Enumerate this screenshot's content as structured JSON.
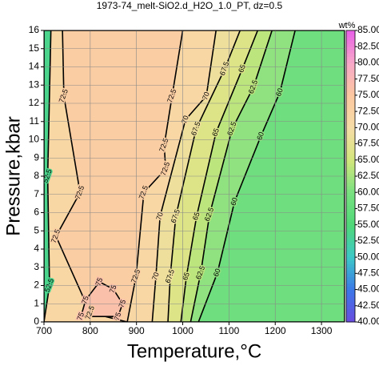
{
  "chart_data": {
    "type": "contour",
    "title": "1973-74_melt-SiO2.d_H2O_1.0_PT, dz=0.5",
    "x_label": "Temperature,°C",
    "y_label": "Pressure,kbar",
    "xlim": [
      700,
      1350
    ],
    "xticks": [
      700,
      800,
      900,
      1000,
      1100,
      1200,
      1300
    ],
    "ylim": [
      0,
      16
    ],
    "yticks": [
      0,
      1,
      2,
      3,
      4,
      5,
      6,
      7,
      8,
      9,
      10,
      11,
      12,
      13,
      14,
      15,
      16
    ],
    "grid": true,
    "colorbar_label": "wt%",
    "clim": [
      40,
      85
    ],
    "cticks": [
      {
        "value": 40,
        "label": "40.00"
      },
      {
        "value": 42.5,
        "label": "42.50"
      },
      {
        "value": 45,
        "label": "45.00"
      },
      {
        "value": 47.5,
        "label": "47.50"
      },
      {
        "value": 50,
        "label": "50.00"
      },
      {
        "value": 52.5,
        "label": "52.50"
      },
      {
        "value": 55,
        "label": "55.00"
      },
      {
        "value": 57.5,
        "label": "57.50"
      },
      {
        "value": 60,
        "label": "60.00"
      },
      {
        "value": 62.5,
        "label": "62.50"
      },
      {
        "value": 65,
        "label": "65.00"
      },
      {
        "value": 67.5,
        "label": "67.50"
      },
      {
        "value": 70,
        "label": "70.00"
      },
      {
        "value": 72.5,
        "label": "72.50"
      },
      {
        "value": 75,
        "label": "75.00"
      },
      {
        "value": 77.5,
        "label": "77.50"
      },
      {
        "value": 80,
        "label": "80.00"
      },
      {
        "value": 82.5,
        "label": "82.50"
      },
      {
        "value": 85,
        "label": "85.00"
      }
    ],
    "colors": [
      "#6a4ce0",
      "#3c78e8",
      "#3cc8c8",
      "#50d878",
      "#78e080",
      "#d4e67c",
      "#f6dca6",
      "#fcc8a0",
      "#f8a8c8",
      "#e860e8"
    ],
    "regions": [
      {
        "level": 57.5,
        "x": [
          700,
          1350,
          1350,
          700
        ],
        "y": [
          0,
          0,
          16,
          16
        ]
      },
      {
        "level": 60,
        "x": [
          700,
          1034,
          1075,
          1112,
          1169,
          1210,
          1243,
          700
        ],
        "y": [
          0,
          0,
          2.7,
          6.6,
          10.2,
          12.6,
          16,
          16
        ]
      },
      {
        "level": 62.5,
        "x": [
          700,
          1017,
          1039,
          1058,
          1107,
          1153,
          1193,
          700
        ],
        "y": [
          0,
          0,
          2.7,
          5.9,
          10.6,
          12.9,
          16,
          16
        ]
      },
      {
        "level": 65,
        "x": [
          700,
          996,
          1008,
          1030,
          1072,
          1129,
          1162,
          700
        ],
        "y": [
          0,
          0,
          2.5,
          5.8,
          10.4,
          13.9,
          16,
          16
        ]
      },
      {
        "level": 67.5,
        "x": [
          700,
          968,
          973,
          985,
          1029,
          1091,
          1124,
          700
        ],
        "y": [
          0,
          0,
          2.5,
          5.8,
          10.6,
          13.9,
          16,
          16
        ]
      },
      {
        "level": 70,
        "x": [
          700,
          934,
          942,
          951,
          1006,
          1051,
          1072,
          700
        ],
        "y": [
          0,
          0,
          2.5,
          5.8,
          11.1,
          12.4,
          16,
          16
        ]
      },
      {
        "level": 72.5,
        "x": [
          740,
          743,
          778,
          726,
          800,
          880,
          899,
          916,
          963,
          960,
          977,
          1000
        ],
        "y": [
          16,
          12.4,
          7.1,
          4.7,
          0.5,
          0,
          2.5,
          7.1,
          8.4,
          9.7,
          12.4,
          16
        ]
      },
      {
        "level": 75,
        "x": [
          780,
          790,
          820,
          850,
          870,
          860
        ],
        "y": [
          0.3,
          1.2,
          2.2,
          1.8,
          1.0,
          0.3
        ]
      },
      {
        "level": 52.5,
        "x": [
          700,
          712,
          708,
          715,
          700
        ],
        "y": [
          0,
          2,
          8,
          16,
          16
        ]
      }
    ]
  }
}
